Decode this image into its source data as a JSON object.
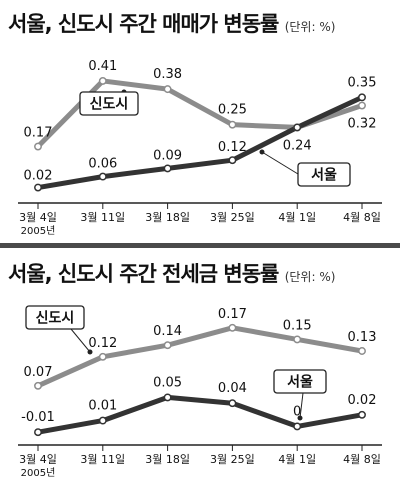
{
  "charts": [
    {
      "title": "서울, 신도시 주간 매매가 변동률",
      "unit": "(단위: %)",
      "chart_data": {
        "type": "line",
        "categories": [
          "3월 4일",
          "3월 11일",
          "3월 18일",
          "3월 25일",
          "4월 1일",
          "4월 8일"
        ],
        "year_note": "2005년",
        "ylim": [
          0,
          0.45
        ],
        "series": [
          {
            "name": "신도시",
            "values": [
              0.17,
              0.41,
              0.38,
              0.25,
              0.24,
              0.32
            ],
            "labels": [
              "0.17",
              "0.41",
              "0.38",
              "0.25",
              "0.24",
              "0.32"
            ],
            "color": "#8c8c8c"
          },
          {
            "name": "서울",
            "values": [
              0.02,
              0.06,
              0.09,
              0.12,
              0.24,
              0.35
            ],
            "labels": [
              "0.02",
              "0.06",
              "0.09",
              "0.12",
              "",
              "0.35"
            ],
            "color": "#333333"
          }
        ],
        "legend": "callout labels on lines",
        "grid": false
      }
    },
    {
      "title": "서울, 신도시 주간 전세금 변동률",
      "unit": "(단위: %)",
      "chart_data": {
        "type": "line",
        "categories": [
          "3월 4일",
          "3월 11일",
          "3월 18일",
          "3월 25일",
          "4월 1일",
          "4월 8일"
        ],
        "year_note": "2005년",
        "ylim": [
          -0.02,
          0.18
        ],
        "series": [
          {
            "name": "신도시",
            "values": [
              0.07,
              0.12,
              0.14,
              0.17,
              0.15,
              0.13
            ],
            "labels": [
              "0.07",
              "0.12",
              "0.14",
              "0.17",
              "0.15",
              "0.13"
            ],
            "color": "#8c8c8c"
          },
          {
            "name": "서울",
            "values": [
              -0.01,
              0.01,
              0.05,
              0.04,
              0,
              0.02
            ],
            "labels": [
              "-0.01",
              "0.01",
              "0.05",
              "0.04",
              "0",
              "0.02"
            ],
            "color": "#333333"
          }
        ],
        "legend": "callout labels on lines",
        "grid": false
      }
    }
  ],
  "colors": {
    "bg": "#ffffff",
    "axis": "#222222",
    "text": "#111111",
    "gray_line": "#8c8c8c",
    "dark_line": "#333333",
    "divider": "#4a4a4a"
  }
}
